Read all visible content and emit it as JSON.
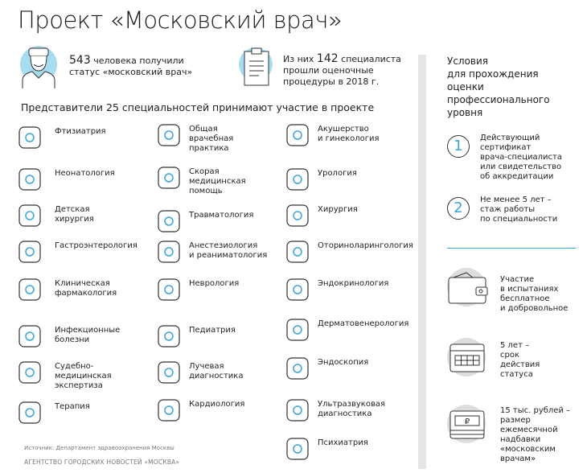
{
  "title": "Проект «Московский врач»",
  "stats": [
    {
      "number": "543",
      "text1": " человека получили",
      "text2": "статус «московский врач»",
      "icon": "doctor-icon"
    },
    {
      "pre": "Из них ",
      "number": "142",
      "text1": " специалиста",
      "text2": "прошли оценочные",
      "text3": "процедуры в 2018 г.",
      "icon": "clipboard-icon"
    }
  ],
  "subheading": "Представители 25 специальностей принимают участие в проекте",
  "specialties": [
    [
      "Фтизиатрия",
      "Неонатология",
      "Детская\nхирургия",
      "Гастроэнтерология",
      "Клиническая\nфармакология",
      "Инфекционные\nболезни",
      "Судебно-\nмедицинская\nэкспертиза",
      "Терапия"
    ],
    [
      "Общая\nврачебная\nпрактика",
      "Скорая\nмедицинская\nпомощь",
      "Травматология",
      "Анестезиология\nи реаниматология",
      "Неврология",
      "Педиатрия",
      "Лучевая\nдиагностика",
      "Кардиология"
    ],
    [
      "Акушерство\nи гинекология",
      "Урология",
      "Хирургия",
      "Оториноларингология",
      "Эндокринология",
      "Дерматовенерология",
      "Эндоскопия",
      "Ультразвуковая\nдиагностика",
      "Психиатрия"
    ]
  ],
  "conditions": {
    "title": "Условия\nдля прохождения\nоценки\nпрофессионального\nуровня",
    "items": [
      {
        "n": "1",
        "text": "Действующий\nсертификат\nврача-специалиста\nили свидетельство\nоб аккредитации"
      },
      {
        "n": "2",
        "text": "Не менее 5 лет –\nстаж работы\nпо специальности"
      }
    ],
    "facts": [
      {
        "icon": "wallet-icon",
        "text": "Участие\nв испытаниях\nбесплатное\nи добровольное"
      },
      {
        "icon": "calendar-icon",
        "text": "5 лет –\nсрок\nдействия\nстатуса"
      },
      {
        "icon": "ruble-banknote-icon",
        "text": "15 тыс. рублей –\nразмер\nежемесячной\nнадбавки\n«московским\nврачам»"
      }
    ]
  },
  "source": "Источник: Департамент здравоохранения Москвы",
  "agency": "АГЕНТСТВО ГОРОДСКИХ НОВОСТЕЙ «МОСКВА»",
  "colors": {
    "accent": "#3aa6d8",
    "icon_bg": "#a8dcf0",
    "grey": "#e6e6e6"
  }
}
